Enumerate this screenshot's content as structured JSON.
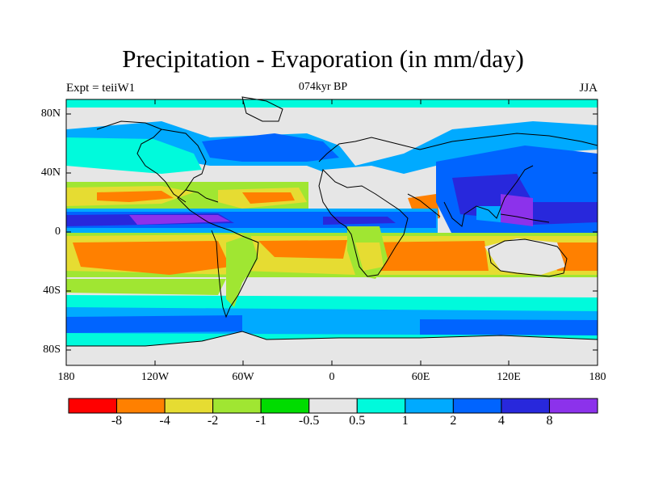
{
  "title": "Precipitation - Evaporation (in mm/day)",
  "subtitle_left": "Expt = teiiW1",
  "subtitle_center": "074kyr BP",
  "subtitle_right": "JJA",
  "lat_labels": [
    "80N",
    "40N",
    "0",
    "40S",
    "80S"
  ],
  "lon_labels": [
    "180",
    "120W",
    "60W",
    "0",
    "60E",
    "120E",
    "180"
  ],
  "colorbar": {
    "colors": [
      "#ff0000",
      "#ff8000",
      "#e6dc32",
      "#a0e632",
      "#00dc00",
      "#e6e6e6",
      "#00fadc",
      "#00aaff",
      "#0064ff",
      "#2828dc",
      "#8c32eb"
    ],
    "labels": [
      "-8",
      "-4",
      "-2",
      "-1",
      "-0.5",
      "0.5",
      "1",
      "2",
      "4",
      "8"
    ]
  },
  "map": {
    "projection": "cylindrical equidistant",
    "lon_range": [
      -180,
      180
    ],
    "lat_range": [
      -90,
      90
    ],
    "variable": "P-E",
    "units": "mm/day",
    "season": "JJA"
  }
}
